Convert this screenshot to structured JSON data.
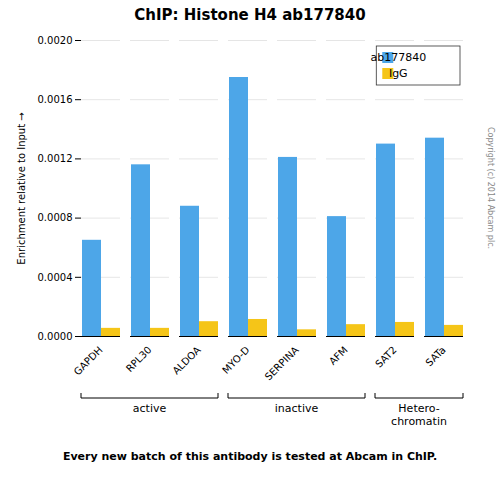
{
  "chart_data": {
    "type": "bar",
    "title": "ChIP: Histone H4 ab177840",
    "ylabel": "Enrichment relative to Input",
    "categories": [
      "GAPDH",
      "RPL30",
      "ALDOA",
      "MYO-D",
      "SERPINA",
      "AFM",
      "SAT2",
      "SATa"
    ],
    "series": [
      {
        "name": "ab177840",
        "color": "#4da6e8",
        "values": [
          0.00065,
          0.00116,
          0.00088,
          0.00175,
          0.00121,
          0.00081,
          0.0013,
          0.00134
        ]
      },
      {
        "name": "IgG",
        "color": "#f5c518",
        "values": [
          5.5e-05,
          5.5e-05,
          0.0001,
          0.000115,
          4.5e-05,
          8e-05,
          9.5e-05,
          7.5e-05
        ]
      }
    ],
    "ylim": [
      0,
      0.002
    ],
    "yticks": [
      {
        "value": 0,
        "label": "0.0000"
      },
      {
        "value": 0.0004,
        "label": "0.0004"
      },
      {
        "value": 0.0008,
        "label": "0.0008"
      },
      {
        "value": 0.0012,
        "label": "0.0012"
      },
      {
        "value": 0.0016,
        "label": "0.0016"
      },
      {
        "value": 0.002,
        "label": "0.0020"
      }
    ],
    "grid": true,
    "legend": "upper right",
    "groups": [
      {
        "label": "active",
        "categories": [
          "GAPDH",
          "RPL30",
          "ALDOA"
        ]
      },
      {
        "label": "inactive",
        "categories": [
          "MYO-D",
          "SERPINA",
          "AFM"
        ]
      },
      {
        "label": "Hetero-\nchromatin",
        "categories": [
          "SAT2",
          "SATa"
        ]
      }
    ],
    "annotations": [
      "Every new batch of this antibody is tested at Abcam in ChIP.",
      "Copyright (c) 2014 Abcam plc."
    ]
  }
}
